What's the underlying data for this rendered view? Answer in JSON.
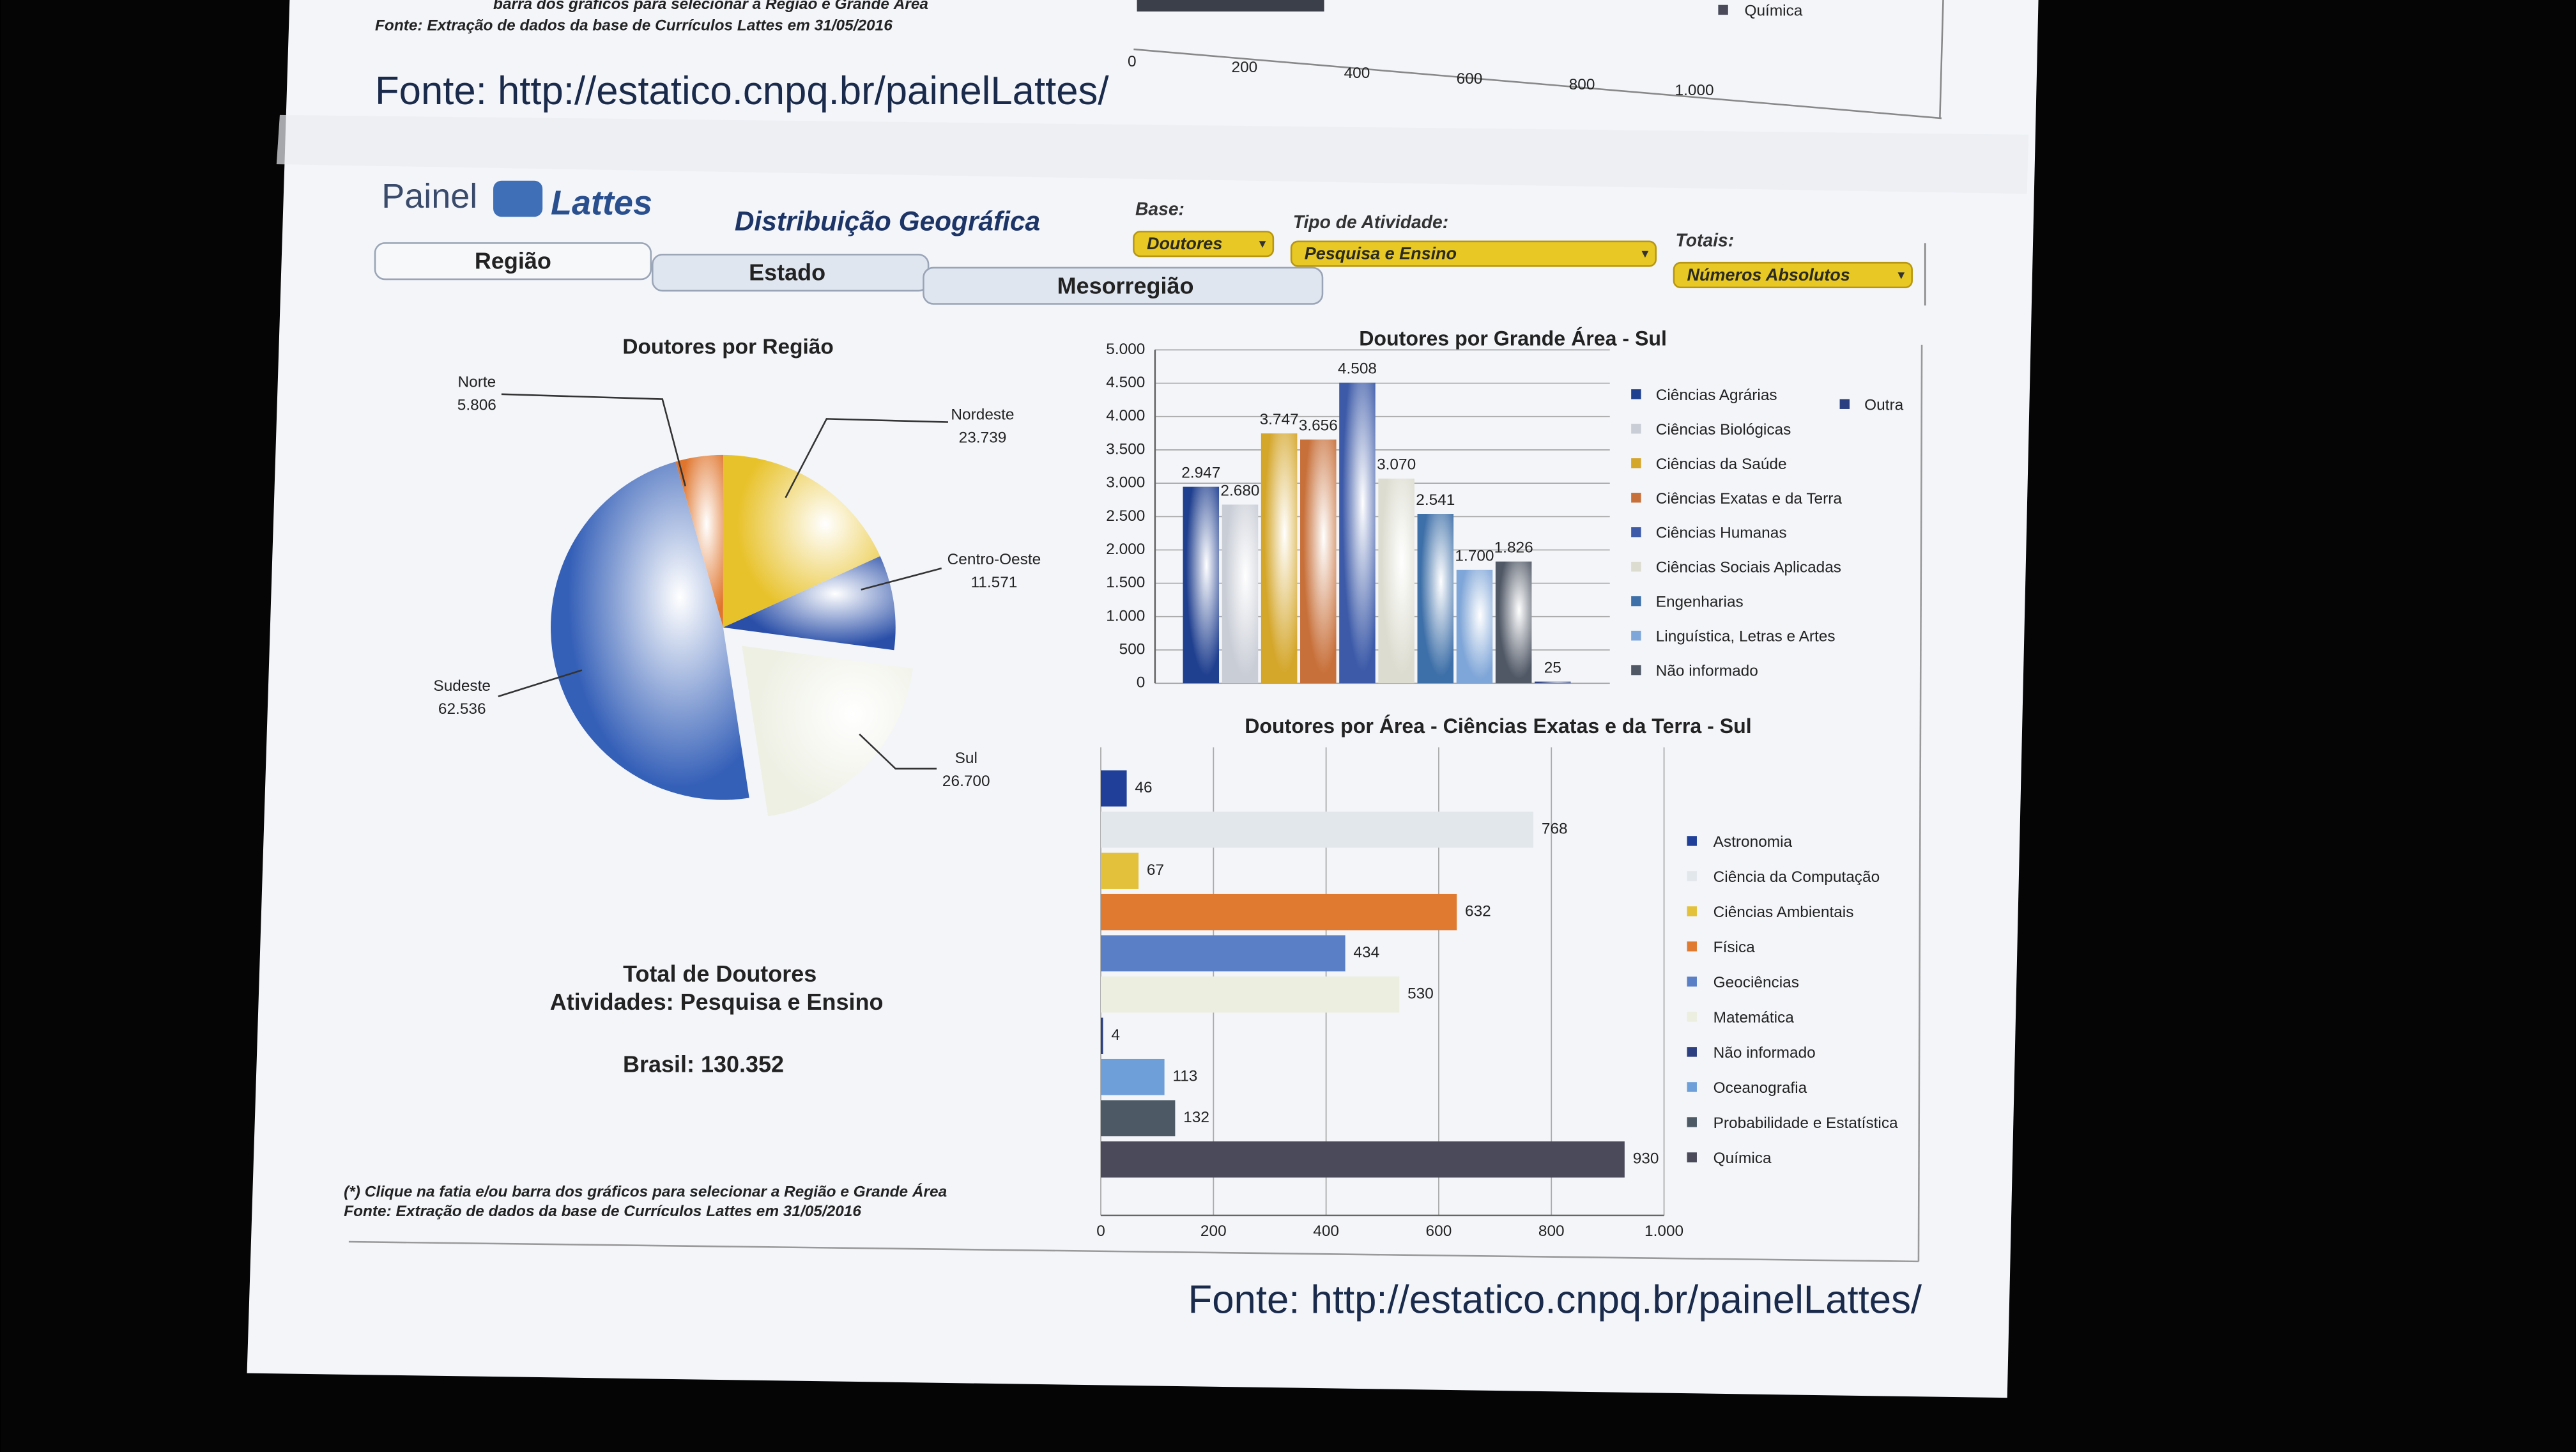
{
  "top": {
    "note": "barra dos gráficos para selecionar a Região e Grande Área",
    "source_note": "Fonte: Extração de dados da base de Currículos Lattes em 31/05/2016",
    "axis_labels": [
      "0",
      "200",
      "400",
      "600",
      "800",
      "1.000"
    ],
    "legend": "Química",
    "source": "Fonte: http://estatico.cnpq.br/painelLattes/"
  },
  "header": {
    "logo_left": "Painel",
    "logo_right": "Lattes",
    "title": "Distribuição Geográfica",
    "filters": [
      {
        "label": "Base:",
        "value": "Doutores"
      },
      {
        "label": "Tipo de Atividade:",
        "value": "Pesquisa e Ensino"
      },
      {
        "label": "Totais:",
        "value": "Números Absolutos"
      }
    ]
  },
  "tabs": [
    "Região",
    "Estado",
    "Mesorregião"
  ],
  "summary": {
    "heading": "Total de Doutores",
    "activities": "Atividades: Pesquisa e Ensino",
    "total": "Brasil: 130.352"
  },
  "footnotes": [
    "(*) Clique na fatia e/ou barra dos gráficos para selecionar a Região e Grande Área",
    "Fonte: Extração de dados da base de Currículos Lattes em 31/05/2016"
  ],
  "source": "Fonte: http://estatico.cnpq.br/painelLattes/",
  "chart_data": [
    {
      "type": "pie",
      "title": "Doutores por Região",
      "categories": [
        "Norte",
        "Nordeste",
        "Centro-Oeste",
        "Sul",
        "Sudeste"
      ],
      "values": [
        5806,
        23739,
        11571,
        26700,
        62536
      ],
      "value_labels": [
        "5.806",
        "23.739",
        "11.571",
        "26.700",
        "62.536"
      ],
      "colors": [
        "#e0762e",
        "#e8c22a",
        "#2a4fa8",
        "#eef0e4",
        "#3560b8"
      ]
    },
    {
      "type": "bar",
      "title": "Doutores por Grande Área - Sul",
      "categories": [
        "Ciências Agrárias",
        "Ciências Biológicas",
        "Ciências da Saúde",
        "Ciências Exatas e da Terra",
        "Ciências Humanas",
        "Ciências Sociais Aplicadas",
        "Engenharias",
        "Linguística, Letras e Artes",
        "Não informado",
        "Outra"
      ],
      "values": [
        2947,
        2680,
        3747,
        3656,
        4508,
        3070,
        2541,
        1700,
        1826,
        25
      ],
      "value_labels": [
        "2.947",
        "2.680",
        "3.747",
        "3.656",
        "4.508",
        "3.070",
        "2.541",
        "1.700",
        "1.826",
        "25"
      ],
      "colors": [
        "#1f3f8f",
        "#c9cdd6",
        "#d4a62a",
        "#c8703a",
        "#3c5aa8",
        "#dcdcd0",
        "#3d6fa8",
        "#7fa6d8",
        "#505866",
        "#2a3f80"
      ],
      "ylim": [
        0,
        5000
      ],
      "yticks": [
        0,
        500,
        {
          "value": 1000,
          "label": "1.000"
        },
        {
          "value": 1500,
          "label": "1.500"
        },
        {
          "value": 2000,
          "label": "2.000"
        },
        {
          "value": 2500,
          "label": "2.500"
        },
        {
          "value": 3000,
          "label": "3.000"
        },
        {
          "value": 3500,
          "label": "3.500"
        },
        {
          "value": 4000,
          "label": "4.000"
        },
        {
          "value": 4500,
          "label": "4.500"
        },
        {
          "value": 5000,
          "label": "5.000"
        }
      ],
      "grid": true
    },
    {
      "type": "hbar",
      "title": "Doutores por Área - Ciências Exatas e da Terra - Sul",
      "categories": [
        "Astronomia",
        "Ciência da Computação",
        "Ciências Ambientais",
        "Física",
        "Geociências",
        "Matemática",
        "Não informado",
        "Oceanografia",
        "Probabilidade e Estatística",
        "Química"
      ],
      "values": [
        46,
        768,
        67,
        632,
        434,
        530,
        4,
        113,
        132,
        930
      ],
      "colors": [
        "#1f3f99",
        "#e2e7ec",
        "#e3c13a",
        "#e07a30",
        "#5a7fc6",
        "#eceee0",
        "#2c3f80",
        "#6f9fd8",
        "#4d5a66",
        "#4a4a5a"
      ],
      "xlim": [
        0,
        1000
      ],
      "xticks": [
        0,
        200,
        400,
        600,
        800,
        {
          "value": 1000,
          "label": "1.000"
        }
      ],
      "grid": true
    }
  ]
}
